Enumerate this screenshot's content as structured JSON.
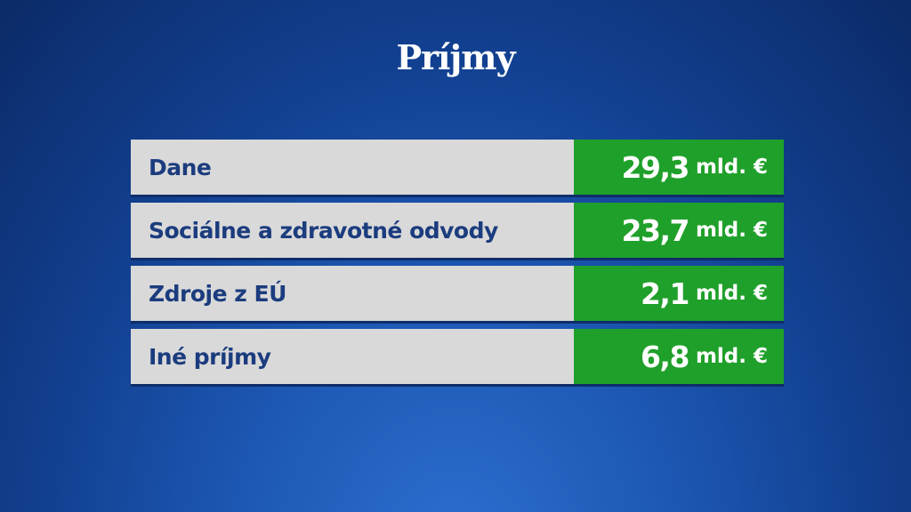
{
  "title": "Príjmy",
  "table": {
    "rows": [
      [
        "Dane",
        "29,3",
        "mld. €"
      ],
      [
        "Sociálne a zdravotné odvody",
        "23,7",
        "mld. €"
      ],
      [
        "Zdroje z EÚ",
        "2,1",
        "mld. €"
      ],
      [
        "Iné príjmy",
        "6,8",
        "mld. €"
      ]
    ]
  }
}
